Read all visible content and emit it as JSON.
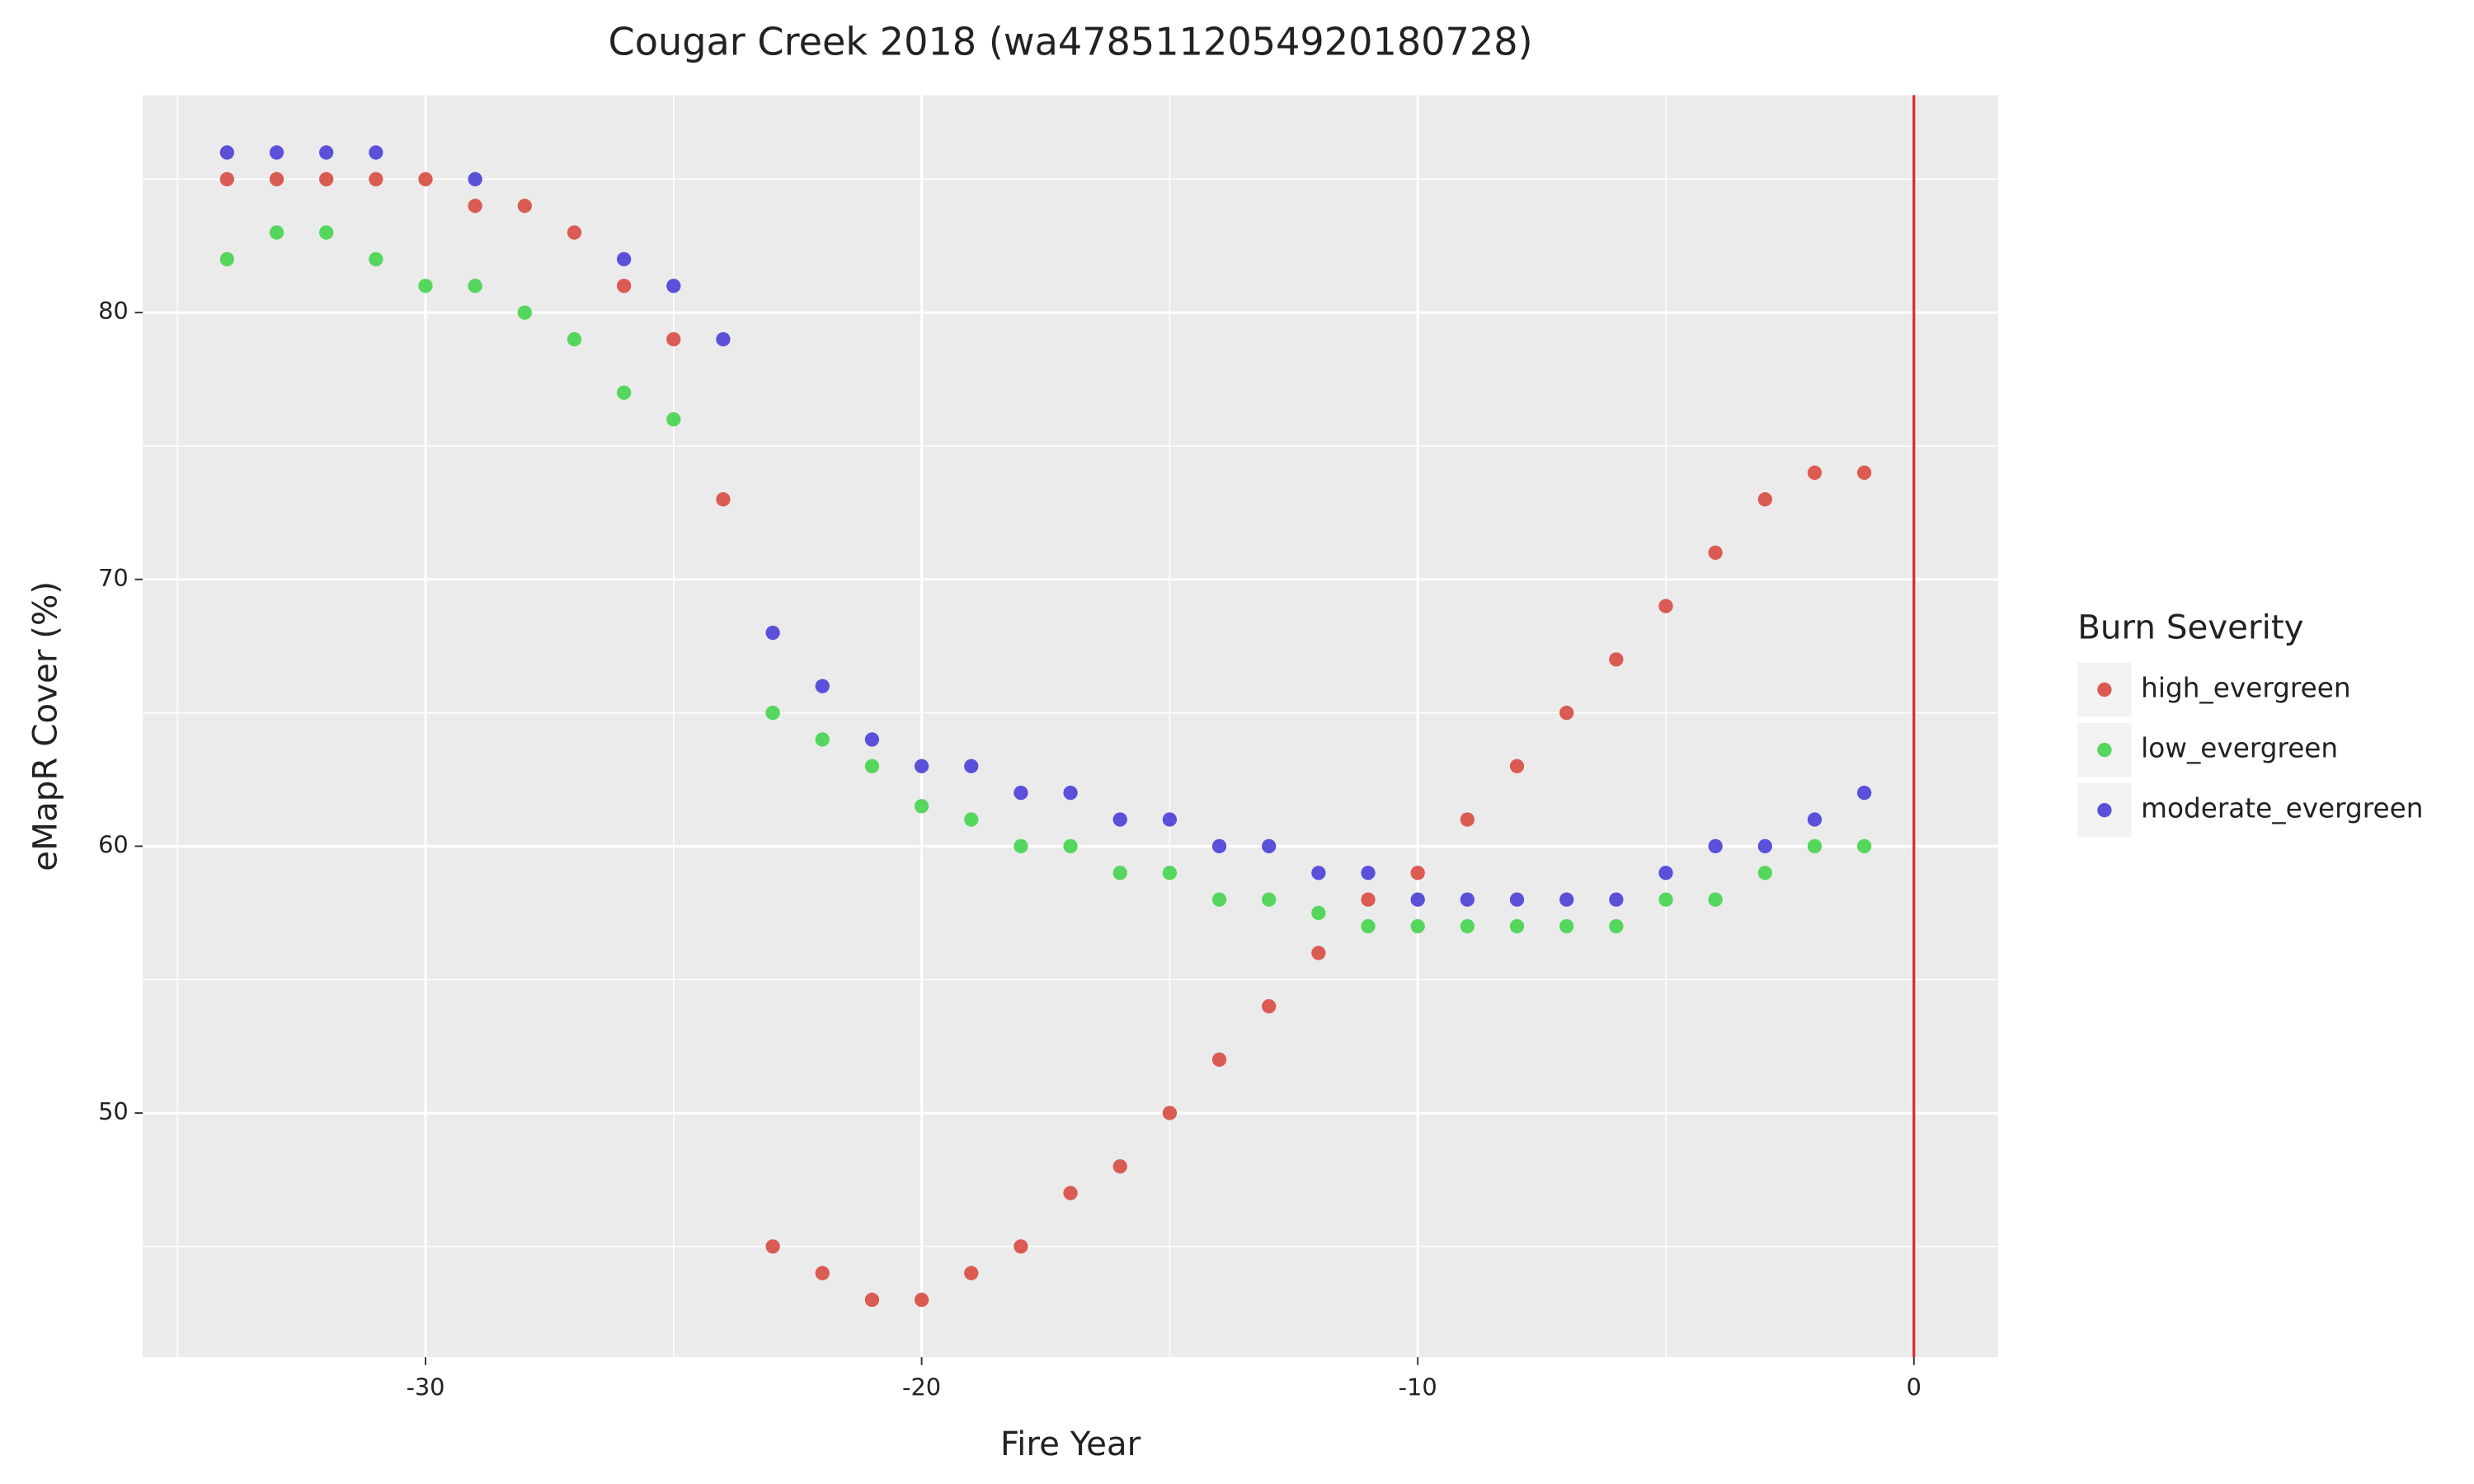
{
  "chart_data": {
    "type": "scatter",
    "title": "Cougar Creek 2018 (wa4785112054920180728)",
    "x_label": "Fire Year",
    "y_label": "eMapR Cover (%)",
    "legend_title": "Burn Severity",
    "legend": "right",
    "grid": true,
    "x": [
      -34,
      -33,
      -32,
      -31,
      -30,
      -29,
      -28,
      -27,
      -26,
      -25,
      -24,
      -23,
      -22,
      -21,
      -20,
      -19,
      -18,
      -17,
      -16,
      -15,
      -14,
      -13,
      -12,
      -11,
      -10,
      -9,
      -8,
      -7,
      -6,
      -5,
      -4,
      -3,
      -2,
      -1
    ],
    "series": [
      {
        "name": "high_evergreen",
        "color": "#d95b52",
        "values": [
          85,
          85,
          85,
          85,
          85,
          84,
          84,
          83,
          81,
          79,
          73,
          45,
          44,
          43,
          43,
          44,
          45,
          47,
          48,
          50,
          52,
          54,
          56,
          58,
          59,
          61,
          63,
          65,
          67,
          69,
          71,
          73,
          74,
          74
        ]
      },
      {
        "name": "low_evergreen",
        "color": "#55d65c",
        "values": [
          82,
          83,
          83,
          82,
          81,
          81,
          80,
          79,
          77,
          76,
          null,
          65,
          64,
          63,
          61.5,
          61,
          60,
          60,
          59,
          59,
          58,
          58,
          57.5,
          57,
          57,
          57,
          57,
          57,
          57,
          58,
          58,
          59,
          60,
          60
        ]
      },
      {
        "name": "moderate_evergreen",
        "color": "#5a50d9",
        "values": [
          86,
          86,
          86,
          86,
          null,
          85,
          null,
          null,
          82,
          81,
          79,
          68,
          66,
          64,
          63,
          63,
          62,
          62,
          61,
          61,
          60,
          60,
          59,
          59,
          58,
          58,
          58,
          58,
          58,
          59,
          60,
          60,
          61,
          62
        ]
      }
    ],
    "xlim": [
      -35.7,
      1.7
    ],
    "ylim": [
      40.85,
      88.15
    ],
    "xticks": [
      -30,
      -20,
      -10,
      0
    ],
    "yticks": [
      50,
      60,
      70,
      80
    ],
    "x_minor_grid": [
      -35,
      -25,
      -15,
      -5
    ],
    "y_minor_grid": [
      45,
      55,
      65,
      75,
      85
    ],
    "vline": {
      "x": 0,
      "color": "#e0202a"
    }
  }
}
